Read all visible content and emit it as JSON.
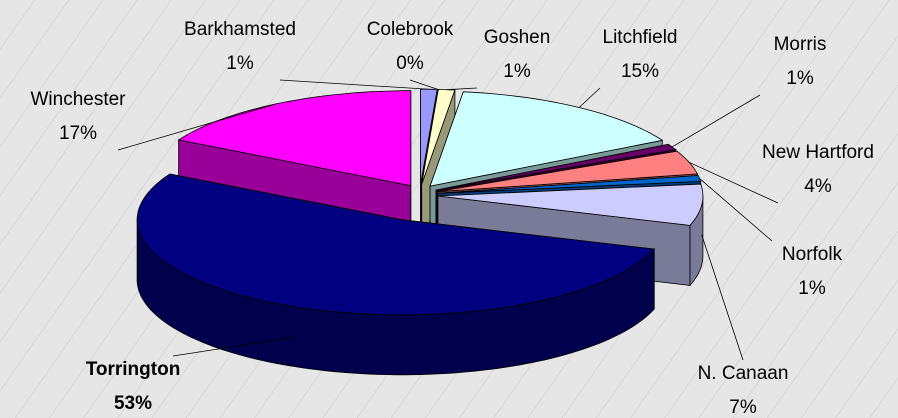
{
  "chart_data": {
    "type": "pie3d",
    "categories": [
      "Barkhamsted",
      "Colebrook",
      "Goshen",
      "Litchfield",
      "Morris",
      "New Hartford",
      "Norfolk",
      "N. Canaan",
      "Torrington",
      "Winchester"
    ],
    "values": [
      1,
      0,
      1,
      15,
      1,
      4,
      1,
      7,
      53,
      17
    ],
    "value_labels": [
      "1%",
      "0%",
      "1%",
      "15%",
      "1%",
      "4%",
      "1%",
      "7%",
      "53%",
      "17%"
    ],
    "colors": [
      "#9999ff",
      "#993366",
      "#ffffcc",
      "#ccffff",
      "#660066",
      "#ff8080",
      "#0066cc",
      "#ccccff",
      "#000080",
      "#ff00ff"
    ]
  }
}
